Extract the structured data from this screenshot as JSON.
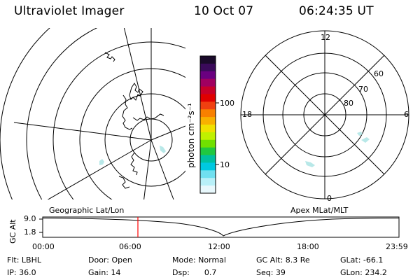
{
  "header": {
    "title": "Ultraviolet Imager",
    "date": "10 Oct 07",
    "time": "06:24:35 UT"
  },
  "colorbar": {
    "unit_label": "photon cm⁻²s⁻¹",
    "ticks": [
      "100",
      "10"
    ],
    "colors": [
      "#1a0a2a",
      "#3a0a5a",
      "#6a0080",
      "#a00060",
      "#c80028",
      "#e00000",
      "#f04010",
      "#f88000",
      "#f8b000",
      "#f0e000",
      "#c0f000",
      "#70e000",
      "#20c840",
      "#00c0a0",
      "#00c8e0",
      "#70e0f0",
      "#b8f0f8",
      "#e8f8fc"
    ]
  },
  "polar_plot": {
    "mlt_labels": [
      "12",
      "18",
      "6",
      "0"
    ],
    "lat_labels": [
      "60",
      "70",
      "80"
    ]
  },
  "timeline": {
    "left_label": "Geographic Lat/Lon",
    "right_label": "Apex MLat/MLT",
    "axis_label": "GC Alt",
    "y_ticks": [
      "9.0",
      "1.8"
    ],
    "x_ticks": [
      "00:00",
      "06:00",
      "12:00",
      "18:00",
      "23:59"
    ],
    "marker_color": "#ff0000",
    "current_time_fraction": 0.2671
  },
  "info": {
    "flt": "Flt: LBHL",
    "ip": "IP: 36.0",
    "door": "Door: Open",
    "gain": "Gain: 14",
    "mode": "Mode: Normal",
    "dsp": "Dsp:      0.7",
    "gc_alt": "GC Alt: 8.3 Re",
    "seq": "Seq: 39",
    "glat": "GLat: -66.1",
    "glon": "GLon: 234.2"
  }
}
